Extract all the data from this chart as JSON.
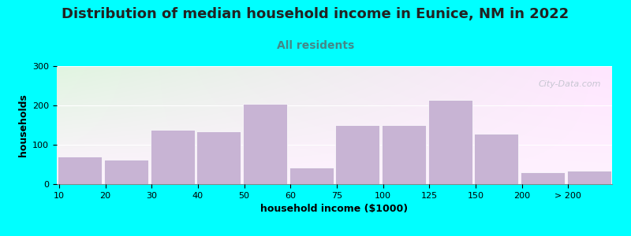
{
  "title": "Distribution of median household income in Eunice, NM in 2022",
  "subtitle": "All residents",
  "xlabel": "household income ($1000)",
  "ylabel": "households",
  "bar_values": [
    70,
    62,
    138,
    135,
    205,
    42,
    150,
    150,
    215,
    128,
    30,
    35
  ],
  "bar_color": "#c8b4d4",
  "bar_edgecolor": "#ffffff",
  "fig_background": "#00ffff",
  "ylim": [
    0,
    300
  ],
  "yticks": [
    0,
    100,
    200,
    300
  ],
  "title_fontsize": 13,
  "subtitle_fontsize": 10,
  "title_color": "#222222",
  "subtitle_color": "#448888",
  "axis_label_fontsize": 9,
  "tick_fontsize": 8,
  "watermark": "City-Data.com"
}
